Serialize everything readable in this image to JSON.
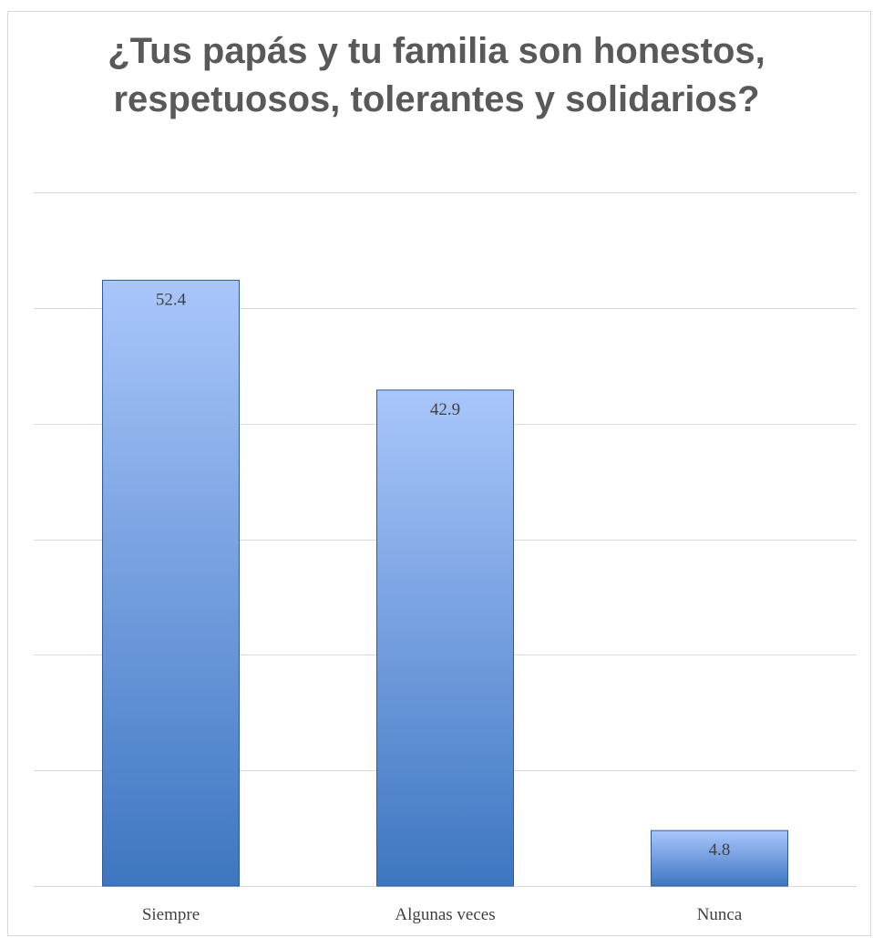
{
  "chart_data": {
    "type": "bar",
    "title": "¿Tus papás y tu familia son honestos, respetuosos, tolerantes y solidarios?",
    "categories": [
      "Siempre",
      "Algunas veces",
      "Nunca"
    ],
    "values": [
      52.4,
      42.9,
      4.8
    ],
    "data_labels": [
      "52.4",
      "42.9",
      "4.8"
    ],
    "ylim": [
      0,
      60
    ],
    "grid": true,
    "legend": "none",
    "colors": {
      "bar_top": "#a9c6fb",
      "bar_bottom": "#3e76c1",
      "bar_edge": "#2f5a98",
      "grid": "#d9d9d9",
      "label_text": "#404040",
      "title_text": "#595959"
    }
  }
}
